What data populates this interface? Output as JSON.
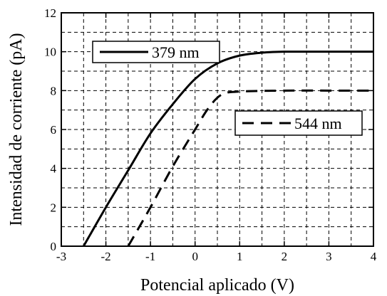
{
  "chart_data": {
    "type": "line",
    "title": "",
    "xlabel": "Potencial aplicado (V)",
    "ylabel": "Intensidad de corriente (pA)",
    "xlim": [
      -3,
      4
    ],
    "ylim": [
      0,
      12
    ],
    "x_ticks": [
      -3,
      -2,
      -1,
      0,
      1,
      2,
      3,
      4
    ],
    "y_ticks": [
      0,
      2,
      4,
      6,
      8,
      10,
      12
    ],
    "grid": true,
    "grid_style": "dashed",
    "series": [
      {
        "name": "379 nm",
        "line_style": "solid",
        "color": "#000000",
        "points": [
          [
            -2.5,
            0
          ],
          [
            -2.0,
            2.0
          ],
          [
            -1.5,
            3.9
          ],
          [
            -1.0,
            5.8
          ],
          [
            -0.5,
            7.3
          ],
          [
            0.0,
            8.6
          ],
          [
            0.5,
            9.4
          ],
          [
            1.0,
            9.8
          ],
          [
            1.5,
            9.95
          ],
          [
            2.0,
            10.0
          ],
          [
            3.0,
            10.0
          ],
          [
            4.0,
            10.0
          ]
        ]
      },
      {
        "name": "544 nm",
        "line_style": "dashed",
        "color": "#000000",
        "points": [
          [
            -1.5,
            0
          ],
          [
            -1.0,
            2.0
          ],
          [
            -0.5,
            4.1
          ],
          [
            0.0,
            6.0
          ],
          [
            0.3,
            7.1
          ],
          [
            0.6,
            7.8
          ],
          [
            1.0,
            7.95
          ],
          [
            2.0,
            8.0
          ],
          [
            3.0,
            8.0
          ],
          [
            4.0,
            8.0
          ]
        ]
      }
    ],
    "legend": [
      {
        "series": "379 nm",
        "placement": "top-left"
      },
      {
        "series": "544 nm",
        "placement": "center-right"
      }
    ]
  }
}
